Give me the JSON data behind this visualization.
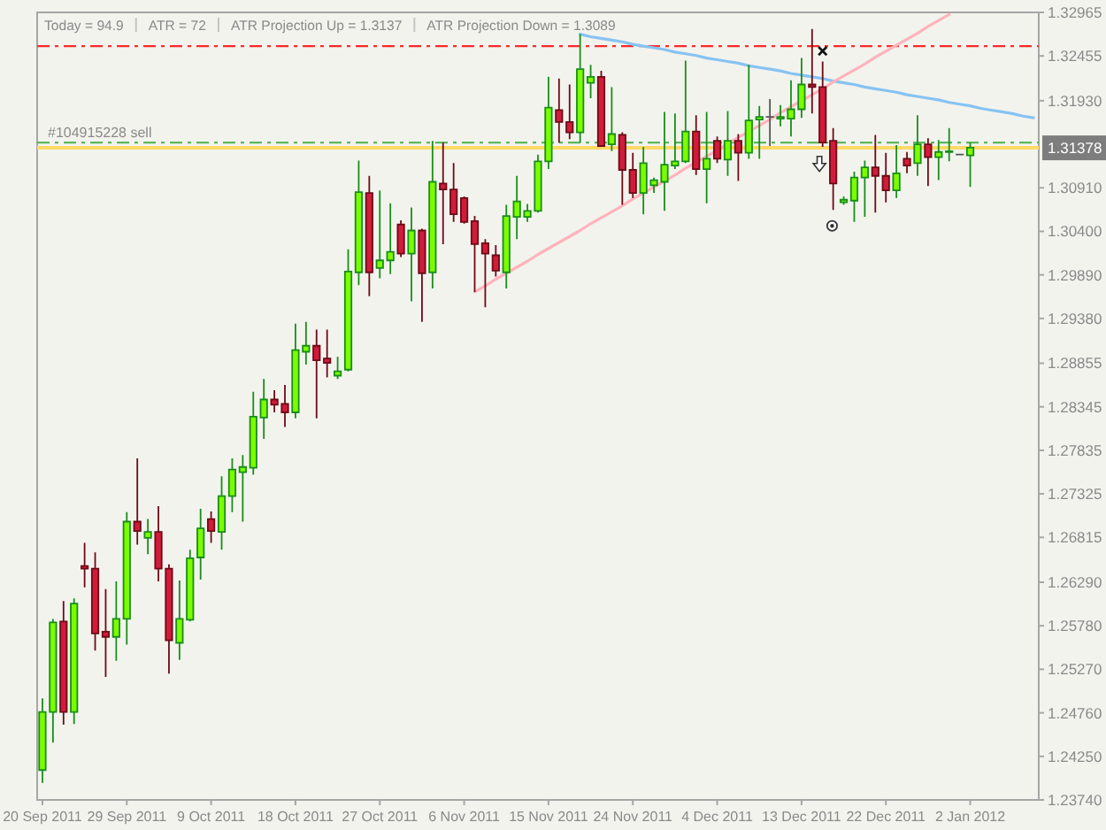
{
  "chart_data": {
    "type": "candlestick",
    "annotations": [
      "Today = 94.9",
      "ATR = 72",
      "ATR Projection Up = 1.3137",
      "ATR Projection Down = 1.3089"
    ],
    "categories": [
      "20 Sep 2011",
      null,
      null,
      null,
      null,
      null,
      null,
      null,
      "29 Sep 2011",
      null,
      null,
      null,
      null,
      null,
      null,
      null,
      "9 Oct 2011",
      null,
      null,
      null,
      null,
      null,
      null,
      null,
      "18 Oct 2011",
      null,
      null,
      null,
      null,
      null,
      null,
      null,
      "27 Oct 2011",
      null,
      null,
      null,
      null,
      null,
      null,
      null,
      "6 Nov 2011",
      null,
      null,
      null,
      null,
      null,
      null,
      null,
      "15 Nov 2011",
      null,
      null,
      null,
      null,
      null,
      null,
      null,
      "24 Nov 2011",
      null,
      null,
      null,
      null,
      null,
      null,
      null,
      "4 Dec 2011",
      null,
      null,
      null,
      null,
      null,
      null,
      null,
      "13 Dec 2011",
      null,
      null,
      null,
      null,
      null,
      null,
      null,
      "22 Dec 2011",
      null,
      null,
      null,
      null,
      null,
      null,
      null,
      "2 Jan 2012",
      null,
      null,
      null,
      null,
      null,
      null
    ],
    "ohlc": [
      [
        1.2409,
        1.2493,
        1.2394,
        1.2477
      ],
      [
        1.2477,
        1.2586,
        1.2441,
        1.2582
      ],
      [
        1.2583,
        1.2607,
        1.2462,
        1.2477
      ],
      [
        1.2477,
        1.261,
        1.2463,
        1.2604
      ],
      [
        1.2648,
        1.2675,
        1.2623,
        1.2645
      ],
      [
        1.2645,
        1.2664,
        1.2549,
        1.2569
      ],
      [
        1.2571,
        1.2621,
        1.2518,
        1.2565
      ],
      [
        1.2565,
        1.263,
        1.2537,
        1.2586
      ],
      [
        1.2586,
        1.2711,
        1.2556,
        1.27
      ],
      [
        1.27,
        1.2774,
        1.2673,
        1.2689
      ],
      [
        1.2681,
        1.2703,
        1.2662,
        1.2688
      ],
      [
        1.2688,
        1.2718,
        1.263,
        1.2645
      ],
      [
        1.2645,
        1.265,
        1.2522,
        1.2561
      ],
      [
        1.2558,
        1.2631,
        1.2538,
        1.2586
      ],
      [
        1.2585,
        1.2667,
        1.2583,
        1.2657
      ],
      [
        1.2658,
        1.2715,
        1.2632,
        1.2692
      ],
      [
        1.2703,
        1.2712,
        1.2675,
        1.2689
      ],
      [
        1.2688,
        1.2753,
        1.2667,
        1.273
      ],
      [
        1.273,
        1.2774,
        1.2711,
        1.2761
      ],
      [
        1.2758,
        1.2778,
        1.27,
        1.2764
      ],
      [
        1.2763,
        1.2852,
        1.2755,
        1.2823
      ],
      [
        1.2822,
        1.2867,
        1.2797,
        1.2843
      ],
      [
        1.2843,
        1.2854,
        1.2828,
        1.2837
      ],
      [
        1.2838,
        1.286,
        1.2811,
        1.2828
      ],
      [
        1.2828,
        1.2932,
        1.2821,
        1.2901
      ],
      [
        1.2899,
        1.2934,
        1.2884,
        1.2906
      ],
      [
        1.2906,
        1.2925,
        1.2821,
        1.2889
      ],
      [
        1.2891,
        1.2925,
        1.2869,
        1.2886
      ],
      [
        1.2871,
        1.2893,
        1.2867,
        1.2876
      ],
      [
        1.2878,
        1.3019,
        1.2876,
        1.2993
      ],
      [
        1.2992,
        1.3123,
        1.2977,
        1.3086
      ],
      [
        1.3085,
        1.3105,
        1.2964,
        1.2992
      ],
      [
        1.2997,
        1.3088,
        1.2985,
        1.3006
      ],
      [
        1.3006,
        1.3073,
        1.299,
        1.3016
      ],
      [
        1.3048,
        1.3053,
        1.301,
        1.3014
      ],
      [
        1.3014,
        1.3068,
        1.2958,
        1.3041
      ],
      [
        1.3041,
        1.3043,
        1.2934,
        1.2991
      ],
      [
        1.2992,
        1.3146,
        1.2973,
        1.3098
      ],
      [
        1.3096,
        1.3144,
        1.3025,
        1.3089
      ],
      [
        1.3089,
        1.312,
        1.3051,
        1.306
      ],
      [
        1.3079,
        1.3081,
        1.3049,
        1.3051
      ],
      [
        1.3052,
        1.3058,
        1.2969,
        1.3025
      ],
      [
        1.3026,
        1.3031,
        1.2951,
        1.3014
      ],
      [
        1.3012,
        1.3024,
        1.2987,
        1.2994
      ],
      [
        1.2992,
        1.3071,
        1.2973,
        1.3058
      ],
      [
        1.3057,
        1.3105,
        1.3031,
        1.3075
      ],
      [
        1.3057,
        1.3072,
        1.3051,
        1.3064
      ],
      [
        1.3064,
        1.313,
        1.3062,
        1.3122
      ],
      [
        1.3122,
        1.3221,
        1.3113,
        1.3185
      ],
      [
        1.3182,
        1.3219,
        1.3144,
        1.3168
      ],
      [
        1.3168,
        1.3212,
        1.3148,
        1.3156
      ],
      [
        1.3156,
        1.3271,
        1.3144,
        1.323
      ],
      [
        1.3214,
        1.3235,
        1.3196,
        1.3221
      ],
      [
        1.3221,
        1.3228,
        1.3139,
        1.314
      ],
      [
        1.3142,
        1.3209,
        1.3134,
        1.3154
      ],
      [
        1.3153,
        1.3156,
        1.3071,
        1.3112
      ],
      [
        1.3112,
        1.3132,
        1.3079,
        1.3085
      ],
      [
        1.3085,
        1.3139,
        1.306,
        1.312
      ],
      [
        1.3094,
        1.3103,
        1.3085,
        1.31
      ],
      [
        1.3098,
        1.318,
        1.3064,
        1.3118
      ],
      [
        1.3117,
        1.3178,
        1.3113,
        1.3122
      ],
      [
        1.3122,
        1.324,
        1.312,
        1.3157
      ],
      [
        1.3157,
        1.3176,
        1.3106,
        1.3113
      ],
      [
        1.3113,
        1.318,
        1.3073,
        1.3125
      ],
      [
        1.3146,
        1.3151,
        1.312,
        1.3125
      ],
      [
        1.3124,
        1.3181,
        1.3105,
        1.3146
      ],
      [
        1.3146,
        1.3154,
        1.3099,
        1.3132
      ],
      [
        1.3132,
        1.3235,
        1.3125,
        1.317
      ],
      [
        1.3171,
        1.3187,
        1.3125,
        1.3174
      ],
      [
        1.3174,
        1.3195,
        1.314,
        1.3174
      ],
      [
        1.3172,
        1.3188,
        1.3163,
        1.3174
      ],
      [
        1.3172,
        1.3217,
        1.3151,
        1.3183
      ],
      [
        1.3183,
        1.3243,
        1.3173,
        1.3212
      ],
      [
        1.3212,
        1.3277,
        1.3178,
        1.3209
      ],
      [
        1.3209,
        1.3239,
        1.3139,
        1.3144
      ],
      [
        1.3146,
        1.3161,
        1.3065,
        1.3096
      ],
      [
        1.3074,
        1.3081,
        1.3071,
        1.3077
      ],
      [
        1.3076,
        1.311,
        1.3051,
        1.3103
      ],
      [
        1.3103,
        1.3123,
        1.3057,
        1.3115
      ],
      [
        1.3115,
        1.3153,
        1.3062,
        1.3105
      ],
      [
        1.3105,
        1.3132,
        1.3074,
        1.3088
      ],
      [
        1.3088,
        1.3141,
        1.3079,
        1.3108
      ],
      [
        1.3125,
        1.3133,
        1.3108,
        1.3117
      ],
      [
        1.312,
        1.3176,
        1.3105,
        1.3142
      ],
      [
        1.3142,
        1.3149,
        1.3093,
        1.3127
      ],
      [
        1.3127,
        1.3147,
        1.31,
        1.3133
      ],
      [
        1.3133,
        1.3161,
        1.3122,
        1.3134
      ],
      [
        1.313,
        1.3131,
        1.3129,
        1.313
      ],
      [
        1.3129,
        1.3144,
        1.3092,
        1.3138
      ],
      null,
      null,
      null,
      null,
      null,
      null
    ],
    "series": [
      {
        "type": "line",
        "color": "#86c3f2",
        "values": [
          null,
          null,
          null,
          null,
          null,
          null,
          null,
          null,
          null,
          null,
          null,
          null,
          null,
          null,
          null,
          null,
          null,
          null,
          null,
          null,
          null,
          null,
          null,
          null,
          null,
          null,
          null,
          null,
          null,
          null,
          null,
          null,
          null,
          null,
          null,
          null,
          null,
          null,
          null,
          null,
          null,
          null,
          null,
          null,
          null,
          null,
          null,
          null,
          null,
          null,
          null,
          1.3271,
          1.3268,
          1.3266,
          1.3264,
          1.3262,
          1.3259,
          1.3257,
          1.3255,
          1.3253,
          1.325,
          1.3248,
          1.3246,
          1.3243,
          1.3241,
          1.3239,
          1.3237,
          1.3234,
          1.3232,
          1.323,
          1.3228,
          1.3225,
          1.3223,
          1.3221,
          1.3219,
          1.3216,
          1.3214,
          1.3212,
          1.3209,
          1.3207,
          1.3205,
          1.3203,
          1.32,
          1.3198,
          1.3196,
          1.3194,
          1.3191,
          1.3189,
          1.3187,
          1.3184,
          1.3182,
          1.318,
          1.3178,
          1.3175,
          1.3173
        ]
      },
      {
        "type": "line",
        "color": "#ffb3bc",
        "values": [
          null,
          null,
          null,
          null,
          null,
          null,
          null,
          null,
          null,
          null,
          null,
          null,
          null,
          null,
          null,
          null,
          null,
          null,
          null,
          null,
          null,
          null,
          null,
          null,
          null,
          null,
          null,
          null,
          null,
          null,
          null,
          null,
          null,
          null,
          null,
          null,
          null,
          null,
          null,
          null,
          null,
          1.2969,
          1.2976,
          1.2984,
          1.2991,
          1.2998,
          1.3005,
          1.3013,
          1.302,
          1.3027,
          1.3034,
          1.3041,
          1.3049,
          1.3056,
          1.3063,
          1.307,
          1.3078,
          1.3085,
          1.3092,
          1.3099,
          1.3106,
          1.3114,
          1.3121,
          1.3128,
          1.3135,
          1.3143,
          1.315,
          1.3157,
          1.3164,
          1.3171,
          1.3179,
          1.3186,
          1.3193,
          1.32,
          1.3207,
          1.3215,
          1.3222,
          1.3229,
          1.3236,
          1.3244,
          1.3251,
          1.3258,
          1.3265,
          1.3272,
          1.328,
          1.3287,
          1.3294,
          null,
          null,
          null,
          null,
          null,
          null,
          null,
          null
        ]
      }
    ],
    "ylim": [
      1.2374,
      1.32965
    ],
    "yticks": [
      1.32965,
      1.32455,
      {
        "value": 1.3193,
        "label": "1.31930"
      },
      {
        "value": 1.3091,
        "label": "1.30910"
      },
      {
        "value": 1.304,
        "label": "1.30400"
      },
      {
        "value": 1.2989,
        "label": "1.29890"
      },
      {
        "value": 1.2938,
        "label": "1.29380"
      },
      1.28855,
      1.28345,
      1.27835,
      1.27325,
      1.26815,
      {
        "value": 1.2629,
        "label": "1.26290"
      },
      {
        "value": 1.2578,
        "label": "1.25780"
      },
      {
        "value": 1.2527,
        "label": "1.25270"
      },
      {
        "value": 1.2476,
        "label": "1.24760"
      },
      {
        "value": 1.2425,
        "label": "1.24250"
      },
      {
        "value": 1.2374,
        "label": "1.23740"
      }
    ],
    "ref_lines": [
      {
        "axis": "y",
        "value": 1.3257,
        "color": "#ff2a2a",
        "line_style": "dashed"
      },
      {
        "axis": "y",
        "value": 1.3144,
        "label": "#104915228 sell",
        "color": "#5cb85c",
        "line_style": "dashed"
      },
      {
        "axis": "y",
        "value": 1.31378,
        "label": "1.31378",
        "color": "#ffd966",
        "line_style": "solid"
      }
    ]
  }
}
